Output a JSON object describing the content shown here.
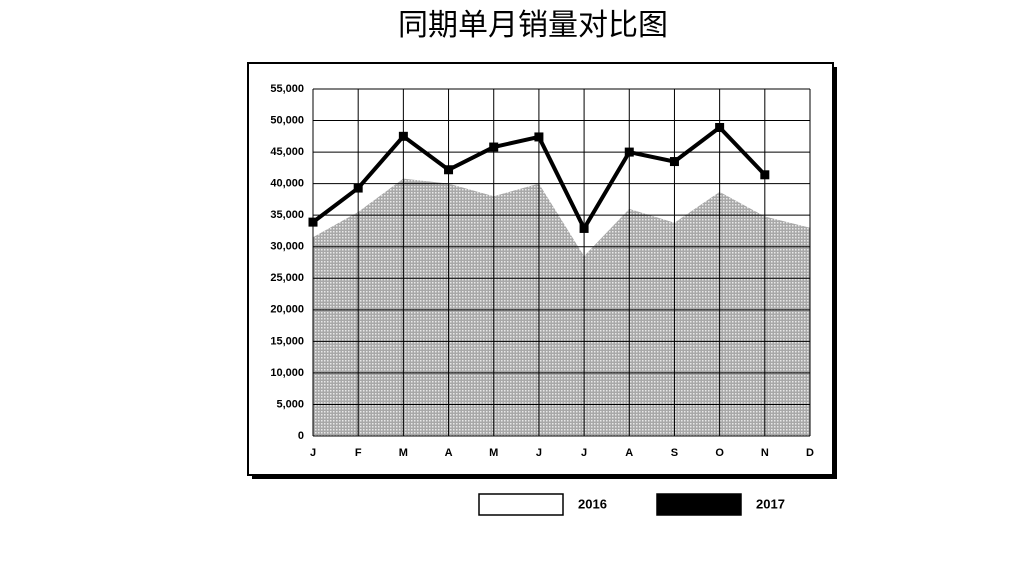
{
  "chart_data": {
    "type": "area-line",
    "title": "同期单月销量对比图",
    "categories": [
      "J",
      "F",
      "M",
      "A",
      "M",
      "J",
      "J",
      "A",
      "S",
      "O",
      "N",
      "D"
    ],
    "series": [
      {
        "name": "2016",
        "color": "#ffffff",
        "values": [
          31500,
          35500,
          40800,
          40000,
          38000,
          40000,
          28500,
          36000,
          33800,
          38700,
          34800,
          33000
        ]
      },
      {
        "name": "2017",
        "color": "#000000",
        "values": [
          33900,
          39300,
          47500,
          42200,
          45800,
          47400,
          32900,
          45000,
          43500,
          48900,
          41400,
          null
        ]
      }
    ],
    "ylim": [
      0,
      55000
    ],
    "yticks": [
      0,
      {
        "value": 5000,
        "label": "5,000"
      },
      {
        "value": 10000,
        "label": "10,000"
      },
      {
        "value": 15000,
        "label": "15,000"
      },
      {
        "value": 20000,
        "label": "20,000"
      },
      {
        "value": 25000,
        "label": "25,000"
      },
      {
        "value": 30000,
        "label": "30,000"
      },
      {
        "value": 35000,
        "label": "35,000"
      },
      {
        "value": 40000,
        "label": "40,000"
      },
      {
        "value": 45000,
        "label": "45,000"
      },
      {
        "value": 50000,
        "label": "50,000"
      },
      {
        "value": 55000,
        "label": "55,000"
      }
    ],
    "grid": true
  }
}
